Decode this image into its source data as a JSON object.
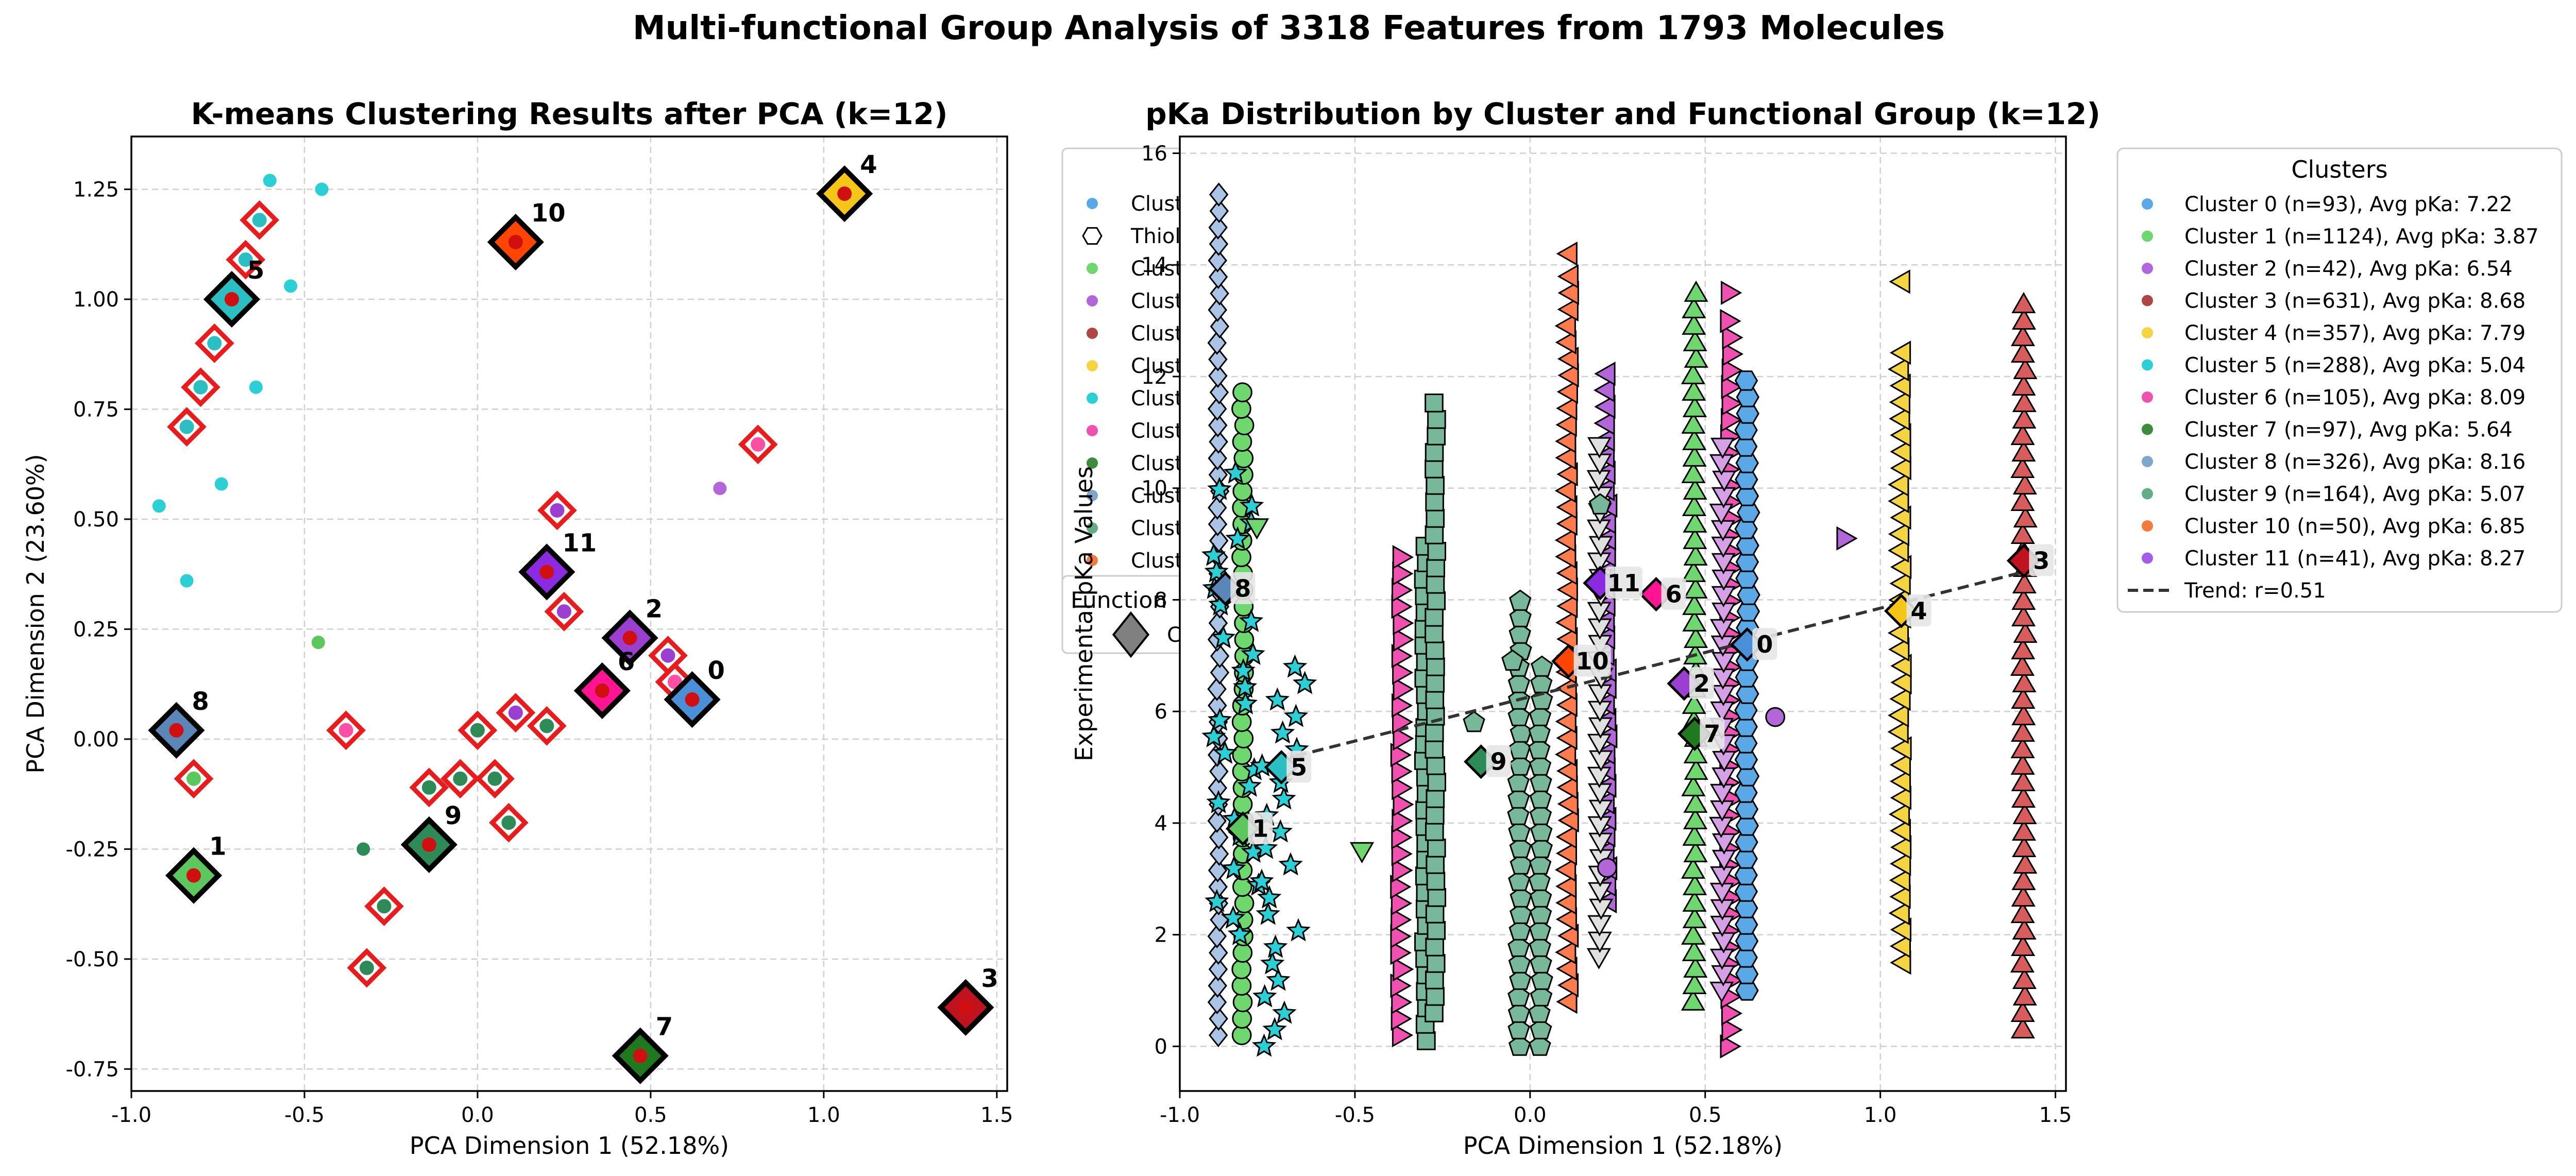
{
  "figure_title": "Multi-functional Group Analysis of 3318 Features from 1793 Molecules",
  "chart_data": [
    {
      "type": "scatter",
      "title": "K-means Clustering Results after PCA (k=12)",
      "xlabel": "PCA Dimension 1 (52.18%)",
      "ylabel": "PCA Dimension 2 (23.60%)",
      "xlim": [
        -1.0,
        1.53
      ],
      "ylim": [
        -0.8,
        1.37
      ],
      "xticks": [
        "-1.0",
        "-0.5",
        "0.0",
        "0.5",
        "1.0",
        "1.5"
      ],
      "xtick_values": [
        -1.0,
        -0.5,
        0.0,
        0.5,
        1.0,
        1.5
      ],
      "yticks": [
        "-0.75",
        "-0.50",
        "-0.25",
        "0.00",
        "0.25",
        "0.50",
        "0.75",
        "1.00",
        "1.25"
      ],
      "ytick_values": [
        -0.75,
        -0.5,
        -0.25,
        0.0,
        0.25,
        0.5,
        0.75,
        1.0,
        1.25
      ],
      "grid": true,
      "centroids": [
        {
          "label": "0",
          "x": 0.62,
          "y": 0.09,
          "color": "#4a90d9"
        },
        {
          "label": "1",
          "x": -0.82,
          "y": -0.31,
          "color": "#5cc75c"
        },
        {
          "label": "2",
          "x": 0.44,
          "y": 0.23,
          "color": "#9b3fd0"
        },
        {
          "label": "3",
          "x": 1.41,
          "y": -0.61,
          "color": "#c1121f"
        },
        {
          "label": "4",
          "x": 1.06,
          "y": 1.24,
          "color": "#f5c518"
        },
        {
          "label": "5",
          "x": -0.71,
          "y": 1.0,
          "color": "#2bbfc4"
        },
        {
          "label": "6",
          "x": 0.36,
          "y": 0.11,
          "color": "#ff1493"
        },
        {
          "label": "7",
          "x": 0.47,
          "y": -0.72,
          "color": "#1f7a1f"
        },
        {
          "label": "8",
          "x": -0.87,
          "y": 0.02,
          "color": "#5a86b8"
        },
        {
          "label": "9",
          "x": -0.14,
          "y": -0.24,
          "color": "#2e8b57"
        },
        {
          "label": "10",
          "x": 0.11,
          "y": 1.13,
          "color": "#ff4500"
        },
        {
          "label": "11",
          "x": 0.2,
          "y": 0.38,
          "color": "#8a2be2"
        }
      ],
      "ringed_points": [
        {
          "x": -0.63,
          "y": 1.18,
          "color": "#2bbfc4"
        },
        {
          "x": -0.67,
          "y": 1.09,
          "color": "#2bbfc4"
        },
        {
          "x": -0.76,
          "y": 0.9,
          "color": "#2bbfc4"
        },
        {
          "x": -0.8,
          "y": 0.8,
          "color": "#2bbfc4"
        },
        {
          "x": -0.84,
          "y": 0.71,
          "color": "#2bbfc4"
        },
        {
          "x": 0.81,
          "y": 0.67,
          "color": "#ff4fa3"
        },
        {
          "x": 0.23,
          "y": 0.52,
          "color": "#9b3fd0"
        },
        {
          "x": 0.25,
          "y": 0.29,
          "color": "#9b3fd0"
        },
        {
          "x": 0.55,
          "y": 0.19,
          "color": "#9b3fd0"
        },
        {
          "x": 0.57,
          "y": 0.13,
          "color": "#ff4fa3"
        },
        {
          "x": 0.11,
          "y": 0.06,
          "color": "#9b3fd0"
        },
        {
          "x": 0.2,
          "y": 0.03,
          "color": "#2e8b57"
        },
        {
          "x": -0.38,
          "y": 0.02,
          "color": "#ff4fa3"
        },
        {
          "x": 0.0,
          "y": 0.02,
          "color": "#2e8b57"
        },
        {
          "x": -0.82,
          "y": -0.09,
          "color": "#5cc75c"
        },
        {
          "x": -0.14,
          "y": -0.11,
          "color": "#2e8b57"
        },
        {
          "x": -0.05,
          "y": -0.09,
          "color": "#2e8b57"
        },
        {
          "x": 0.05,
          "y": -0.09,
          "color": "#2e8b57"
        },
        {
          "x": 0.09,
          "y": -0.19,
          "color": "#2e8b57"
        },
        {
          "x": -0.27,
          "y": -0.38,
          "color": "#2e8b57"
        },
        {
          "x": -0.32,
          "y": -0.52,
          "color": "#2e8b57"
        }
      ],
      "plain_points": [
        {
          "x": -0.6,
          "y": 1.27,
          "color": "#2bcfd6"
        },
        {
          "x": -0.45,
          "y": 1.25,
          "color": "#2bcfd6"
        },
        {
          "x": -0.54,
          "y": 1.03,
          "color": "#2bcfd6"
        },
        {
          "x": -0.64,
          "y": 0.8,
          "color": "#2bcfd6"
        },
        {
          "x": -0.74,
          "y": 0.58,
          "color": "#2bcfd6"
        },
        {
          "x": -0.92,
          "y": 0.53,
          "color": "#2bcfd6"
        },
        {
          "x": -0.84,
          "y": 0.36,
          "color": "#2bcfd6"
        },
        {
          "x": 0.7,
          "y": 0.57,
          "color": "#b266d9"
        },
        {
          "x": -0.46,
          "y": 0.22,
          "color": "#5cc75c"
        },
        {
          "x": -0.33,
          "y": -0.25,
          "color": "#2e8b57"
        }
      ]
    },
    {
      "type": "scatter",
      "title": "pKa Distribution by Cluster and Functional Group (k=12)",
      "xlabel": "PCA Dimension 1 (52.18%)",
      "ylabel": "Experimental pKa Values",
      "xlim": [
        -1.0,
        1.53
      ],
      "ylim": [
        -0.8,
        16.3
      ],
      "xticks": [
        "-1.0",
        "-0.5",
        "0.0",
        "0.5",
        "1.0",
        "1.5"
      ],
      "xtick_values": [
        -1.0,
        -0.5,
        0.0,
        0.5,
        1.0,
        1.5
      ],
      "yticks": [
        "0",
        "2",
        "4",
        "6",
        "8",
        "10",
        "12",
        "14",
        "16"
      ],
      "ytick_values": [
        0,
        2,
        4,
        6,
        8,
        10,
        12,
        14,
        16
      ],
      "grid": true,
      "trend": {
        "label": "Trend: r=0.51",
        "x": [
          -0.67,
          1.41
        ],
        "y": [
          5.2,
          8.5
        ]
      },
      "columns": [
        {
          "x": -0.89,
          "y": [
            0.2,
            15.3
          ],
          "marker": "diamond",
          "color": "#a9c4e4"
        },
        {
          "x": -0.82,
          "y": [
            0.2,
            12.0
          ],
          "marker": "circle",
          "color": "#6ed86e"
        },
        {
          "x": -0.84,
          "y": [
            2.0,
            10.5
          ],
          "marker": "star",
          "color": "#2bcfd6"
        },
        {
          "x": -0.7,
          "y": [
            0.0,
            6.9
          ],
          "marker": "star",
          "color": "#2bcfd6"
        },
        {
          "x": -0.37,
          "y": [
            0.2,
            8.9
          ],
          "marker": "tri-right",
          "color": "#f050b0"
        },
        {
          "x": -0.3,
          "y": [
            0.1,
            9.1
          ],
          "marker": "square",
          "color": "#76b899"
        },
        {
          "x": -0.27,
          "y": [
            0.6,
            11.6
          ],
          "marker": "square",
          "color": "#76b899"
        },
        {
          "x": -0.03,
          "y": [
            0.0,
            8.0
          ],
          "marker": "pentagon",
          "color": "#76b899"
        },
        {
          "x": 0.03,
          "y": [
            0.0,
            7.0
          ],
          "marker": "pentagon",
          "color": "#76b899"
        },
        {
          "x": 0.11,
          "y": [
            0.8,
            14.0
          ],
          "marker": "tri-left",
          "color": "#ff7a4d"
        },
        {
          "x": 0.22,
          "y": [
            2.6,
            12.2
          ],
          "marker": "tri-left",
          "color": "#b266d9"
        },
        {
          "x": 0.2,
          "y": [
            1.6,
            11.0
          ],
          "marker": "tri-down",
          "color": "#e0e0e0"
        },
        {
          "x": 0.47,
          "y": [
            0.8,
            13.5
          ],
          "marker": "tri-up",
          "color": "#6ed86e"
        },
        {
          "x": 0.57,
          "y": [
            0.0,
            13.0
          ],
          "marker": "tri-right",
          "color": "#f050b0"
        },
        {
          "x": 0.55,
          "y": [
            1.0,
            11.0
          ],
          "marker": "tri-down",
          "color": "#d6a0e6"
        },
        {
          "x": 0.62,
          "y": [
            1.0,
            12.2
          ],
          "marker": "hexagon",
          "color": "#5aa9e6"
        },
        {
          "x": 1.06,
          "y": [
            1.5,
            12.6
          ],
          "marker": "tri-left",
          "color": "#f5d442"
        },
        {
          "x": 1.41,
          "y": [
            0.3,
            13.5
          ],
          "marker": "tri-up",
          "color": "#d95c5c"
        }
      ],
      "extra_points": [
        {
          "x": -0.78,
          "y": 9.3,
          "marker": "tri-down",
          "color": "#6ed86e"
        },
        {
          "x": -0.48,
          "y": 3.5,
          "marker": "tri-down",
          "color": "#6ed86e"
        },
        {
          "x": 0.11,
          "y": 14.2,
          "marker": "tri-left",
          "color": "#ff7a4d"
        },
        {
          "x": 0.57,
          "y": 13.5,
          "marker": "tri-right",
          "color": "#f050b0"
        },
        {
          "x": 0.9,
          "y": 9.1,
          "marker": "tri-right",
          "color": "#b266d9"
        },
        {
          "x": 1.06,
          "y": 13.7,
          "marker": "tri-left",
          "color": "#f5d442"
        },
        {
          "x": 0.7,
          "y": 5.9,
          "marker": "circle",
          "color": "#b266d9"
        },
        {
          "x": 0.22,
          "y": 3.2,
          "marker": "circle",
          "color": "#b266d9"
        },
        {
          "x": -0.16,
          "y": 5.8,
          "marker": "pentagon",
          "color": "#76b899"
        },
        {
          "x": -0.05,
          "y": 6.9,
          "marker": "pentagon",
          "color": "#76b899"
        },
        {
          "x": 0.2,
          "y": 9.7,
          "marker": "pentagon",
          "color": "#76b899"
        }
      ],
      "centroid_markers": [
        {
          "label": "0",
          "x": 0.62,
          "y": 7.2,
          "color": "#4a90d9"
        },
        {
          "label": "1",
          "x": -0.82,
          "y": 3.9,
          "color": "#5cc75c"
        },
        {
          "label": "2",
          "x": 0.44,
          "y": 6.5,
          "color": "#9b3fd0"
        },
        {
          "label": "3",
          "x": 1.41,
          "y": 8.7,
          "color": "#c1121f"
        },
        {
          "label": "4",
          "x": 1.06,
          "y": 7.8,
          "color": "#f5c518"
        },
        {
          "label": "5",
          "x": -0.71,
          "y": 5.0,
          "color": "#2bbfc4"
        },
        {
          "label": "6",
          "x": 0.36,
          "y": 8.1,
          "color": "#ff1493"
        },
        {
          "label": "7",
          "x": 0.47,
          "y": 5.6,
          "color": "#1f7a1f"
        },
        {
          "label": "8",
          "x": -0.87,
          "y": 8.2,
          "color": "#5a86b8"
        },
        {
          "label": "9",
          "x": -0.14,
          "y": 5.1,
          "color": "#2e8b57"
        },
        {
          "label": "10",
          "x": 0.11,
          "y": 6.9,
          "color": "#ff4500"
        },
        {
          "label": "11",
          "x": 0.2,
          "y": 8.3,
          "color": "#8a2be2"
        }
      ],
      "legend_clusters": {
        "title": "Clusters",
        "placement": "outside-right",
        "entries": [
          {
            "label": "Cluster 0 (n=93), Avg pKa: 7.22",
            "color": "#5aa9e6"
          },
          {
            "label": "Cluster 1 (n=1124), Avg pKa: 3.87",
            "color": "#6ed86e"
          },
          {
            "label": "Cluster 2 (n=42), Avg pKa: 6.54",
            "color": "#b266d9"
          },
          {
            "label": "Cluster 3 (n=631), Avg pKa: 8.68",
            "color": "#b04545"
          },
          {
            "label": "Cluster 4 (n=357), Avg pKa: 7.79",
            "color": "#f5d442"
          },
          {
            "label": "Cluster 5 (n=288), Avg pKa: 5.04",
            "color": "#2bcfd6"
          },
          {
            "label": "Cluster 6 (n=105), Avg pKa: 8.09",
            "color": "#f050b0"
          },
          {
            "label": "Cluster 7 (n=97), Avg pKa: 5.64",
            "color": "#3c8c3c"
          },
          {
            "label": "Cluster 8 (n=326), Avg pKa: 8.16",
            "color": "#7ea6cc"
          },
          {
            "label": "Cluster 9 (n=164), Avg pKa: 5.07",
            "color": "#63ad86"
          },
          {
            "label": "Cluster 10 (n=50), Avg pKa: 6.85",
            "color": "#f5793d"
          },
          {
            "label": "Cluster 11 (n=41), Avg pKa: 8.27",
            "color": "#a35de6"
          }
        ],
        "trend_entry": "Trend: r=0.51"
      },
      "legend_functional_partial": {
        "entries": [
          {
            "label": "Clust",
            "marker": "circle",
            "color": "#5aa9e6"
          },
          {
            "label": "Thiol",
            "marker": "hexagon-open",
            "color": "#ffffff"
          },
          {
            "label": "Clust",
            "marker": "circle",
            "color": "#6ed86e"
          },
          {
            "label": "Clust",
            "marker": "circle",
            "color": "#b266d9"
          },
          {
            "label": "Clust",
            "marker": "circle",
            "color": "#b04545"
          },
          {
            "label": "Clust",
            "marker": "circle",
            "color": "#f5d442"
          },
          {
            "label": "Clust",
            "marker": "circle",
            "color": "#2bcfd6"
          },
          {
            "label": "Clust",
            "marker": "circle",
            "color": "#f050b0"
          },
          {
            "label": "Clust",
            "marker": "circle",
            "color": "#3c8c3c"
          },
          {
            "label": "Clust",
            "marker": "circle",
            "color": "#7ea6cc"
          },
          {
            "label": "Clust",
            "marker": "circle",
            "color": "#63ad86"
          },
          {
            "label": "Clust",
            "marker": "circle",
            "color": "#f5793d"
          }
        ],
        "second_title": "Function",
        "second_entry": "C"
      }
    }
  ]
}
